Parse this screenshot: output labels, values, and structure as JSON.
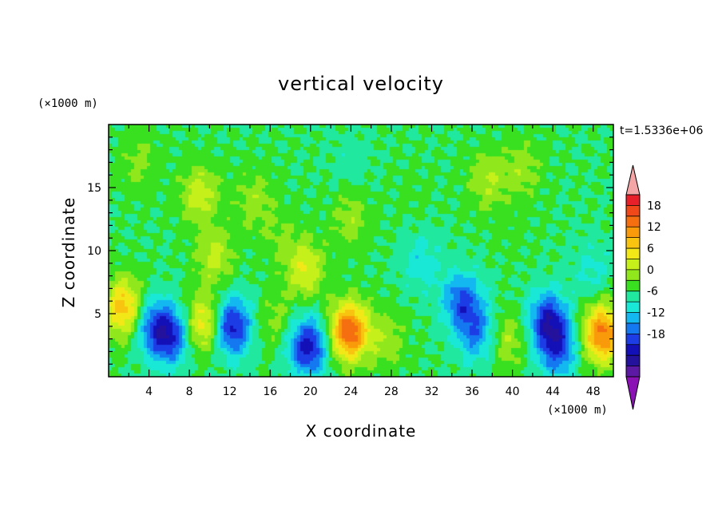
{
  "chart_data": {
    "type": "heatmap",
    "title": "vertical velocity",
    "xlabel": "X coordinate",
    "ylabel": "Z coordinate",
    "x_unit": "(×1000 m)",
    "y_unit": "(×1000 m)",
    "time_label": "t=1.5336e+06",
    "xlim": [
      0,
      50
    ],
    "ylim": [
      0,
      20
    ],
    "x_ticks": [
      4,
      8,
      12,
      16,
      20,
      24,
      28,
      32,
      36,
      40,
      44,
      48
    ],
    "y_ticks": [
      5,
      10,
      15
    ],
    "colorbar": {
      "labels": [
        18,
        12,
        6,
        0,
        -6,
        -12,
        -18
      ],
      "levels": [
        24,
        21,
        18,
        15,
        12,
        9,
        6,
        3,
        0,
        -3,
        -6,
        -9,
        -12,
        -15,
        -18,
        -21
      ],
      "colors": [
        "#e8202a",
        "#f04818",
        "#f56e10",
        "#f89a0a",
        "#f8c410",
        "#f2e818",
        "#c6f01a",
        "#90e81c",
        "#38e020",
        "#20e89e",
        "#1ae8d6",
        "#14b8f0",
        "#1478f0",
        "#1c3ce6",
        "#1410b8",
        "#24129c",
        "#5c1aa4"
      ],
      "over_color": "#f4a6a6",
      "under_color": "#8a12b4"
    },
    "features": [
      {
        "x": 1.5,
        "z": 5.5,
        "value": 14
      },
      {
        "x": 4.5,
        "z": 4.0,
        "value": -11
      },
      {
        "x": 6.2,
        "z": 3.2,
        "value": -13
      },
      {
        "x": 9.5,
        "z": 4.2,
        "value": 12
      },
      {
        "x": 12.2,
        "z": 4.0,
        "value": -17
      },
      {
        "x": 16.5,
        "z": 4.5,
        "value": 4
      },
      {
        "x": 19.8,
        "z": 2.4,
        "value": -17
      },
      {
        "x": 19.5,
        "z": 8.5,
        "value": 9
      },
      {
        "x": 23.8,
        "z": 3.6,
        "value": 21
      },
      {
        "x": 27.5,
        "z": 3.0,
        "value": 5
      },
      {
        "x": 35.0,
        "z": 6.0,
        "value": -12
      },
      {
        "x": 36.5,
        "z": 3.5,
        "value": -10
      },
      {
        "x": 39.5,
        "z": 3.0,
        "value": 6
      },
      {
        "x": 43.5,
        "z": 4.5,
        "value": -15
      },
      {
        "x": 44.5,
        "z": 2.2,
        "value": -12
      },
      {
        "x": 48.9,
        "z": 3.4,
        "value": 19
      },
      {
        "x": 9.0,
        "z": 14.5,
        "value": 8
      },
      {
        "x": 10.5,
        "z": 9.5,
        "value": 7
      },
      {
        "x": 14.5,
        "z": 14.0,
        "value": 5
      },
      {
        "x": 17.0,
        "z": 11.0,
        "value": 3
      },
      {
        "x": 24.0,
        "z": 12.5,
        "value": 5
      },
      {
        "x": 30.0,
        "z": 14.5,
        "value": 1
      },
      {
        "x": 40.0,
        "z": 11.5,
        "value": 1
      },
      {
        "x": 37.5,
        "z": 15.5,
        "value": 6
      },
      {
        "x": 41.0,
        "z": 16.5,
        "value": 5
      },
      {
        "x": 3.0,
        "z": 17.0,
        "value": 4
      },
      {
        "x": 24.0,
        "z": 17.0,
        "value": -2
      },
      {
        "x": 31.0,
        "z": 9.0,
        "value": -5
      },
      {
        "x": 48.0,
        "z": 8.5,
        "value": -4
      }
    ]
  }
}
